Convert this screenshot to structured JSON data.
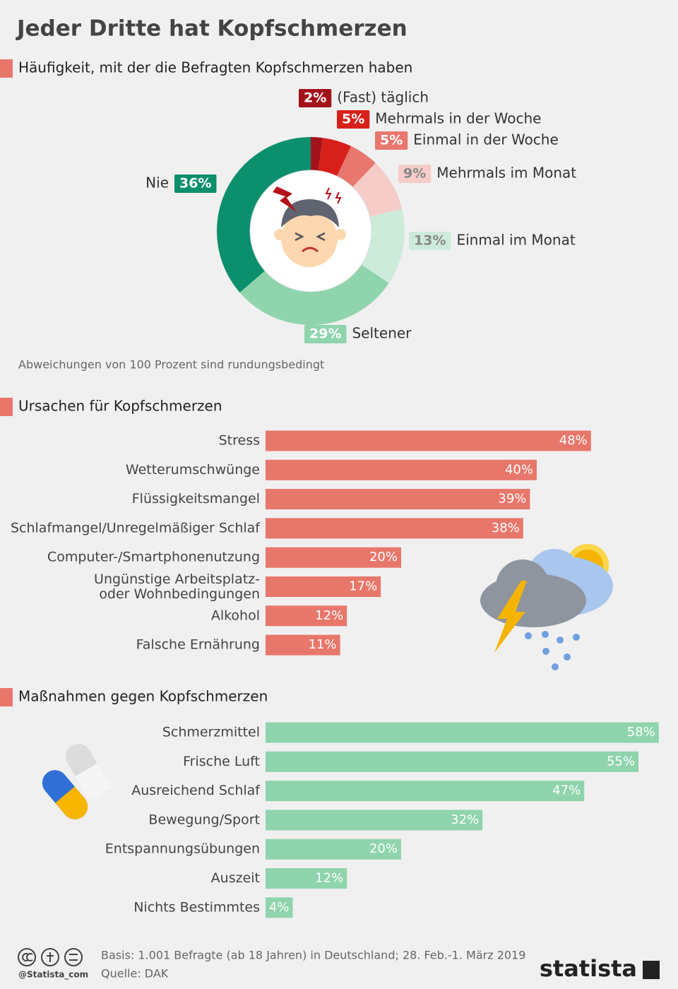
{
  "title": "Jeder Dritte hat Kopfschmerzen",
  "chart_data": [
    {
      "type": "donut",
      "title": "Häufigkeit, mit der die Befragten Kopfschmerzen haben",
      "categories": [
        "(Fast) täglich",
        "Mehrmals in der Woche",
        "Einmal in der Woche",
        "Mehrmals im Monat",
        "Einmal im Monat",
        "Seltener",
        "Nie"
      ],
      "values": [
        2,
        5,
        5,
        9,
        13,
        29,
        36
      ],
      "value_labels": [
        "2%",
        "5%",
        "5%",
        "9%",
        "13%",
        "29%",
        "36%"
      ],
      "colors": [
        "#a3121a",
        "#d8201a",
        "#e8776e",
        "#f5ccc8",
        "#cdebdb",
        "#8fd4ad",
        "#0b8f6c"
      ],
      "note": "Abweichungen von 100 Prozent sind rundungsbedingt"
    },
    {
      "type": "hbar",
      "title": "Ursachen für Kopfschmerzen",
      "color": "#e8776b",
      "categories": [
        "Stress",
        "Wetterumschwünge",
        "Flüssigkeitsmangel",
        "Schlafmangel/Unregelmäßiger Schlaf",
        "Computer-/Smartphonenutzung",
        "Ungünstige Arbeitsplatz-\noder Wohnbedingungen",
        "Alkohol",
        "Falsche Ernährung"
      ],
      "values": [
        48,
        40,
        39,
        38,
        20,
        17,
        12,
        11
      ],
      "value_labels": [
        "48%",
        "40%",
        "39%",
        "38%",
        "20%",
        "17%",
        "12%",
        "11%"
      ]
    },
    {
      "type": "hbar",
      "title": "Maßnahmen gegen Kopfschmerzen",
      "color": "#8fd4ad",
      "categories": [
        "Schmerzmittel",
        "Frische Luft",
        "Ausreichend Schlaf",
        "Bewegung/Sport",
        "Entspannungsübungen",
        "Auszeit",
        "Nichts Bestimmtes"
      ],
      "values": [
        58,
        55,
        47,
        32,
        20,
        12,
        4
      ],
      "value_labels": [
        "58%",
        "55%",
        "47%",
        "32%",
        "20%",
        "12%",
        "4%"
      ]
    }
  ],
  "basis": "Basis: 1.001 Befragte (ab 18 Jahren) in Deutschland; 28. Feb.-1. März 2019",
  "source": "Quelle: DAK",
  "handle": "@Statista_com",
  "brand": "statista"
}
